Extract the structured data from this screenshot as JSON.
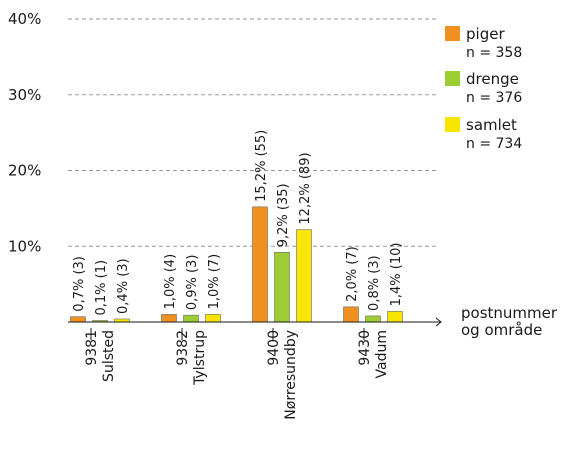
{
  "chart_data": {
    "type": "bar",
    "xlabel_lines": [
      "postnummer",
      "og område"
    ],
    "ylim": [
      0,
      40
    ],
    "y_ticks": [
      {
        "value": 10,
        "label": "10%"
      },
      {
        "value": 20,
        "label": "20%"
      },
      {
        "value": 30,
        "label": "30%"
      },
      {
        "value": 40,
        "label": "40%"
      }
    ],
    "grid": "dashed horizontal at 10, 20, 30, 40",
    "legend_position": "right",
    "categories": [
      {
        "code": "9381",
        "name": "Sulsted"
      },
      {
        "code": "9382",
        "name": "Tylstrup"
      },
      {
        "code": "9400",
        "name": "Nørresundby"
      },
      {
        "code": "9430",
        "name": "Vadum"
      }
    ],
    "series": [
      {
        "name": "piger",
        "n_label": "n = 358",
        "color": "#f0901e",
        "values": [
          0.7,
          1.0,
          15.2,
          2.0
        ],
        "labels": [
          "0,7% (3)",
          "1,0% (4)",
          "15,2% (55)",
          "2,0% (7)"
        ]
      },
      {
        "name": "drenge",
        "n_label": "n = 376",
        "color": "#9ccd32",
        "values": [
          0.1,
          0.9,
          9.2,
          0.8
        ],
        "labels": [
          "0,1% (1)",
          "0,9% (3)",
          "9,2% (35)",
          "0,8% (3)"
        ]
      },
      {
        "name": "samlet",
        "n_label": "n = 734",
        "color": "#f7e400",
        "values": [
          0.4,
          1.0,
          12.2,
          1.4
        ],
        "labels": [
          "0,4% (3)",
          "1,0% (7)",
          "12,2% (89)",
          "1,4% (10)"
        ]
      }
    ]
  }
}
